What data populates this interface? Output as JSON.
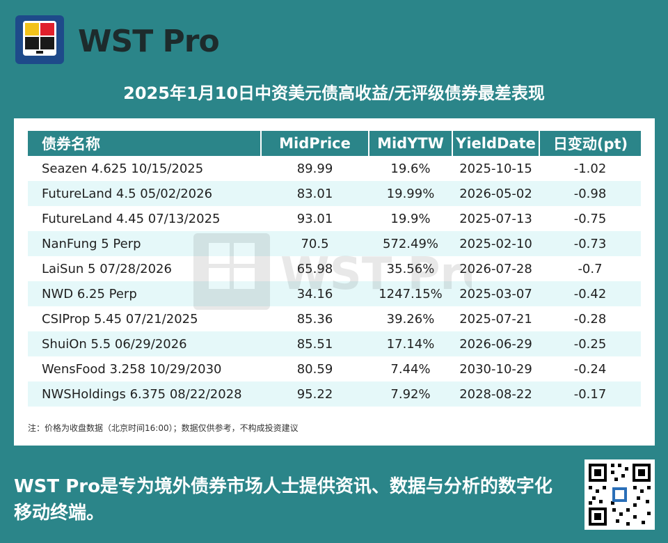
{
  "brand": {
    "name": "WST Pro"
  },
  "title": "2025年1月10日中资美元债高收益/无评级债券最差表现",
  "table": {
    "headers": [
      "债券名称",
      "MidPrice",
      "MidYTW",
      "YieldDate",
      "日变动(pt)"
    ],
    "rows": [
      [
        "Seazen 4.625 10/15/2025",
        "89.99",
        "19.6%",
        "2025-10-15",
        "-1.02"
      ],
      [
        "FutureLand 4.5 05/02/2026",
        "83.01",
        "19.99%",
        "2026-05-02",
        "-0.98"
      ],
      [
        "FutureLand 4.45 07/13/2025",
        "93.01",
        "19.9%",
        "2025-07-13",
        "-0.75"
      ],
      [
        "NanFung 5 Perp",
        "70.5",
        "572.49%",
        "2025-02-10",
        "-0.73"
      ],
      [
        "LaiSun 5 07/28/2026",
        "65.98",
        "35.56%",
        "2026-07-28",
        "-0.7"
      ],
      [
        "NWD 6.25 Perp",
        "34.16",
        "1247.15%",
        "2025-03-07",
        "-0.42"
      ],
      [
        "CSIProp 5.45 07/21/2025",
        "85.36",
        "39.26%",
        "2025-07-21",
        "-0.28"
      ],
      [
        "ShuiOn 5.5 06/29/2026",
        "85.51",
        "17.14%",
        "2026-06-29",
        "-0.25"
      ],
      [
        "WensFood 3.258 10/29/2030",
        "80.59",
        "7.44%",
        "2030-10-29",
        "-0.24"
      ],
      [
        "NWSHoldings 6.375 08/22/2028",
        "95.22",
        "7.92%",
        "2028-08-22",
        "-0.17"
      ]
    ]
  },
  "note": "注：价格为收盘数据（北京时间16:00）；数据仅供参考，不构成投资建议",
  "watermark": "WST Pro",
  "footer": "WST Pro是专为境外债券市场人士提供资讯、数据与分析的数字化移动终端。",
  "colors": {
    "background": "#2b8589",
    "row_alt": "#e5f8f9",
    "logo_bg": "#1e4a8a",
    "logo_yellow": "#f2c21b",
    "logo_red": "#e0202c"
  },
  "icons": [
    "wst-logo-icon",
    "qr-code-icon"
  ]
}
